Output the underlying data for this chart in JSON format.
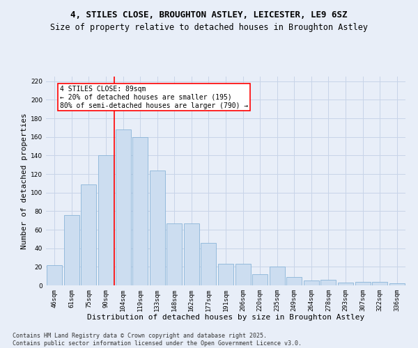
{
  "title1": "4, STILES CLOSE, BROUGHTON ASTLEY, LEICESTER, LE9 6SZ",
  "title2": "Size of property relative to detached houses in Broughton Astley",
  "xlabel": "Distribution of detached houses by size in Broughton Astley",
  "ylabel": "Number of detached properties",
  "categories": [
    "46sqm",
    "61sqm",
    "75sqm",
    "90sqm",
    "104sqm",
    "119sqm",
    "133sqm",
    "148sqm",
    "162sqm",
    "177sqm",
    "191sqm",
    "206sqm",
    "220sqm",
    "235sqm",
    "249sqm",
    "264sqm",
    "278sqm",
    "293sqm",
    "307sqm",
    "322sqm",
    "336sqm"
  ],
  "values": [
    22,
    76,
    109,
    140,
    168,
    160,
    124,
    67,
    67,
    46,
    23,
    23,
    12,
    20,
    9,
    5,
    6,
    3,
    4,
    4,
    2
  ],
  "bar_color": "#ccddf0",
  "bar_edge_color": "#8ab4d8",
  "grid_color": "#c8d4e8",
  "background_color": "#e8eef8",
  "vline_x_index": 3.5,
  "annotation_text": "4 STILES CLOSE: 89sqm\n← 20% of detached houses are smaller (195)\n80% of semi-detached houses are larger (790) →",
  "annotation_box_color": "white",
  "annotation_box_edge_color": "red",
  "vline_color": "red",
  "ylim": [
    0,
    225
  ],
  "yticks": [
    0,
    20,
    40,
    60,
    80,
    100,
    120,
    140,
    160,
    180,
    200,
    220
  ],
  "footer_text": "Contains HM Land Registry data © Crown copyright and database right 2025.\nContains public sector information licensed under the Open Government Licence v3.0.",
  "title1_fontsize": 9,
  "title2_fontsize": 8.5,
  "xlabel_fontsize": 8,
  "ylabel_fontsize": 8,
  "tick_fontsize": 6.5,
  "annotation_fontsize": 7,
  "footer_fontsize": 6
}
